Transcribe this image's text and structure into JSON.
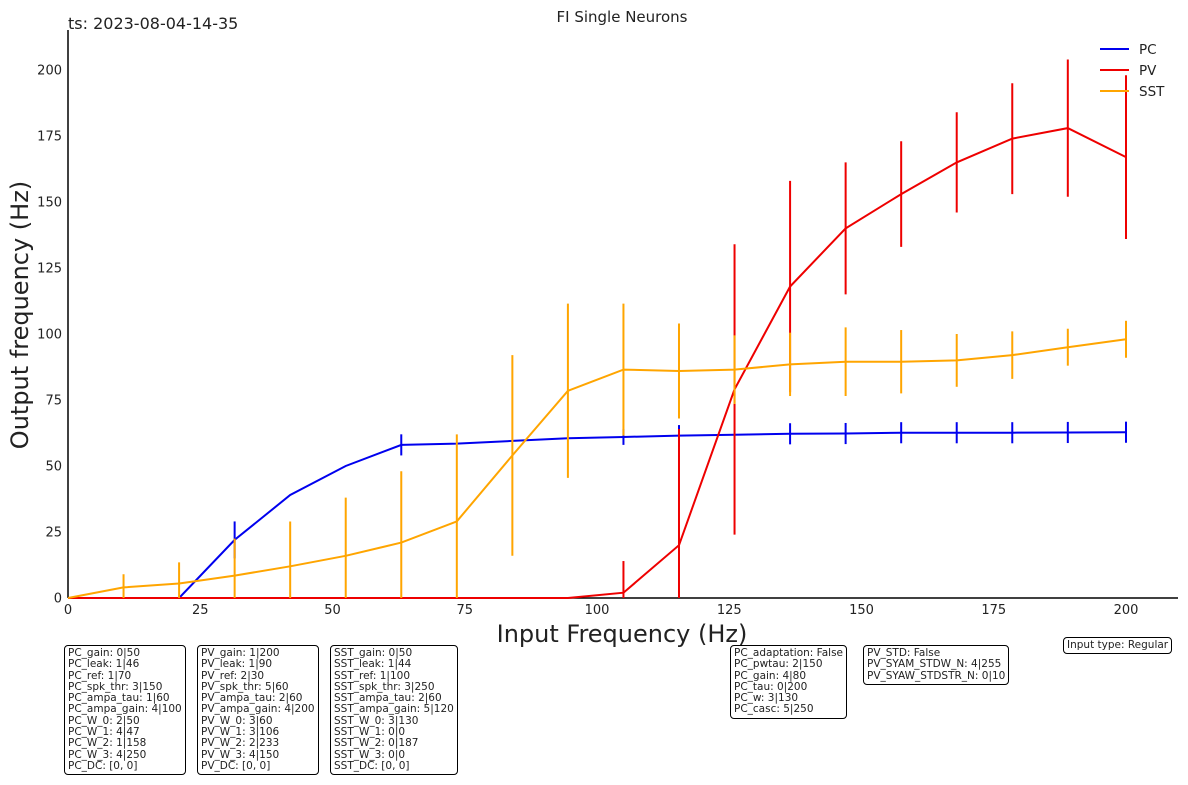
{
  "timestamp": "ts: 2023-08-04-14-35",
  "chart_data": {
    "type": "line",
    "title": "FI Single Neurons",
    "xlabel": "Input Frequency (Hz)",
    "ylabel": "Output frequency (Hz)",
    "xlim": [
      0,
      210
    ],
    "ylim": [
      0,
      215
    ],
    "xticks": [
      0,
      25,
      50,
      75,
      100,
      125,
      150,
      175,
      200
    ],
    "yticks": [
      0,
      25,
      50,
      75,
      100,
      125,
      150,
      175,
      200
    ],
    "grid": false,
    "legend_position": "top-right",
    "series": [
      {
        "name": "PC",
        "color": "#0000ee",
        "x": [
          0,
          10.5,
          21,
          31.5,
          42,
          52.5,
          63,
          73.5,
          84,
          94.5,
          105,
          115.5,
          126,
          136.5,
          147,
          157.5,
          168,
          178.5,
          189,
          200
        ],
        "y": [
          0,
          0,
          0,
          22,
          39,
          50,
          58,
          58.5,
          59.5,
          60.5,
          61,
          61.5,
          61.8,
          62.2,
          62.3,
          62.6,
          62.6,
          62.6,
          62.7,
          62.8
        ],
        "err": [
          0,
          0,
          0,
          7,
          0,
          0,
          4,
          0,
          0,
          0,
          3,
          4,
          0,
          4,
          4,
          4,
          4,
          4,
          4,
          4
        ]
      },
      {
        "name": "PV",
        "color": "#ee0000",
        "x": [
          0,
          10.5,
          21,
          31.5,
          42,
          52.5,
          63,
          73.5,
          84,
          94.5,
          105,
          115.5,
          126,
          136.5,
          147,
          157.5,
          168,
          178.5,
          189,
          200
        ],
        "y": [
          0,
          0,
          0,
          0,
          0,
          0,
          0,
          0,
          0,
          0,
          2,
          20,
          79,
          118,
          140,
          153,
          165,
          174,
          178,
          167
        ],
        "err": [
          0,
          0,
          0,
          0,
          0,
          0,
          0,
          0,
          0,
          0,
          12,
          44,
          55,
          40,
          25,
          20,
          19,
          21,
          26,
          31
        ]
      },
      {
        "name": "SST",
        "color": "#ffa500",
        "x": [
          0,
          10.5,
          21,
          31.5,
          42,
          52.5,
          63,
          73.5,
          84,
          94.5,
          105,
          115.5,
          126,
          136.5,
          147,
          157.5,
          168,
          178.5,
          189,
          200
        ],
        "y": [
          0,
          4,
          5.5,
          8.5,
          12,
          16,
          21,
          29,
          54,
          78.5,
          86.5,
          86,
          86.5,
          88.5,
          89.5,
          89.5,
          90,
          92,
          95,
          98
        ],
        "err": [
          0,
          5,
          8,
          14,
          17,
          22,
          27,
          33,
          38,
          33,
          25,
          18,
          13,
          12,
          13,
          12,
          10,
          9,
          7,
          7
        ]
      }
    ]
  },
  "param_boxes": [
    {
      "lines": [
        "PC_gain: 0|50",
        "PC_leak: 1|46",
        "PC_ref: 1|70",
        "PC_spk_thr: 3|150",
        "PC_ampa_tau: 1|60",
        "PC_ampa_gain: 4|100",
        "PC_W_0: 2|50",
        "PC_W_1: 4|47",
        "PC_W_2: 1|158",
        "PC_W_3: 4|250",
        "PC_DC: [0, 0]"
      ]
    },
    {
      "lines": [
        "PV_gain: 1|200",
        "PV_leak: 1|90",
        "PV_ref: 2|30",
        "PV_spk_thr: 5|60",
        "PV_ampa_tau: 2|60",
        "PV_ampa_gain: 4|200",
        "PV_W_0: 3|60",
        "PV_W_1: 3|106",
        "PV_W_2: 2|233",
        "PV_W_3: 4|150",
        "PV_DC: [0, 0]"
      ]
    },
    {
      "lines": [
        "SST_gain: 0|50",
        "SST_leak: 1|44",
        "SST_ref: 1|100",
        "SST_spk_thr: 3|250",
        "SST_ampa_tau: 2|60",
        "SST_ampa_gain: 5|120",
        "SST_W_0: 3|130",
        "SST_W_1: 0|0",
        "SST_W_2: 0|187",
        "SST_W_3: 0|0",
        "SST_DC: [0, 0]"
      ]
    },
    {
      "lines": [
        "PC_adaptation: False",
        "PC_pwtau: 2|150",
        "PC_gain: 4|80",
        "PC_tau: 0|200",
        "PC_w: 3|130",
        "PC_casc: 5|250"
      ]
    },
    {
      "lines": [
        "PV_STD: False",
        "PV_SYAM_STDW_N: 4|255",
        "PV_SYAW_STDSTR_N: 0|10"
      ]
    },
    {
      "lines": [
        "Input type: Regular"
      ]
    }
  ]
}
